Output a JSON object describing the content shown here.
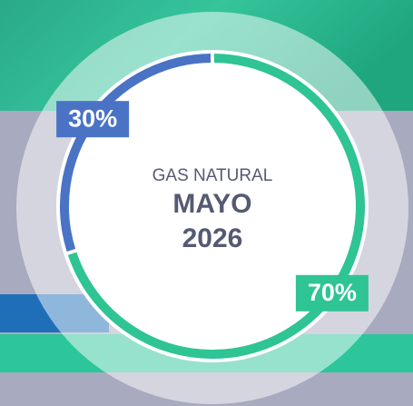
{
  "chart_data": {
    "type": "donut",
    "subtitle": "GAS NATURAL",
    "title": "MAYO",
    "year": "2026",
    "values": [
      70,
      30
    ],
    "value_labels": [
      "70%",
      "30%"
    ],
    "colors": [
      "#2ec493",
      "#4a73c5"
    ]
  }
}
